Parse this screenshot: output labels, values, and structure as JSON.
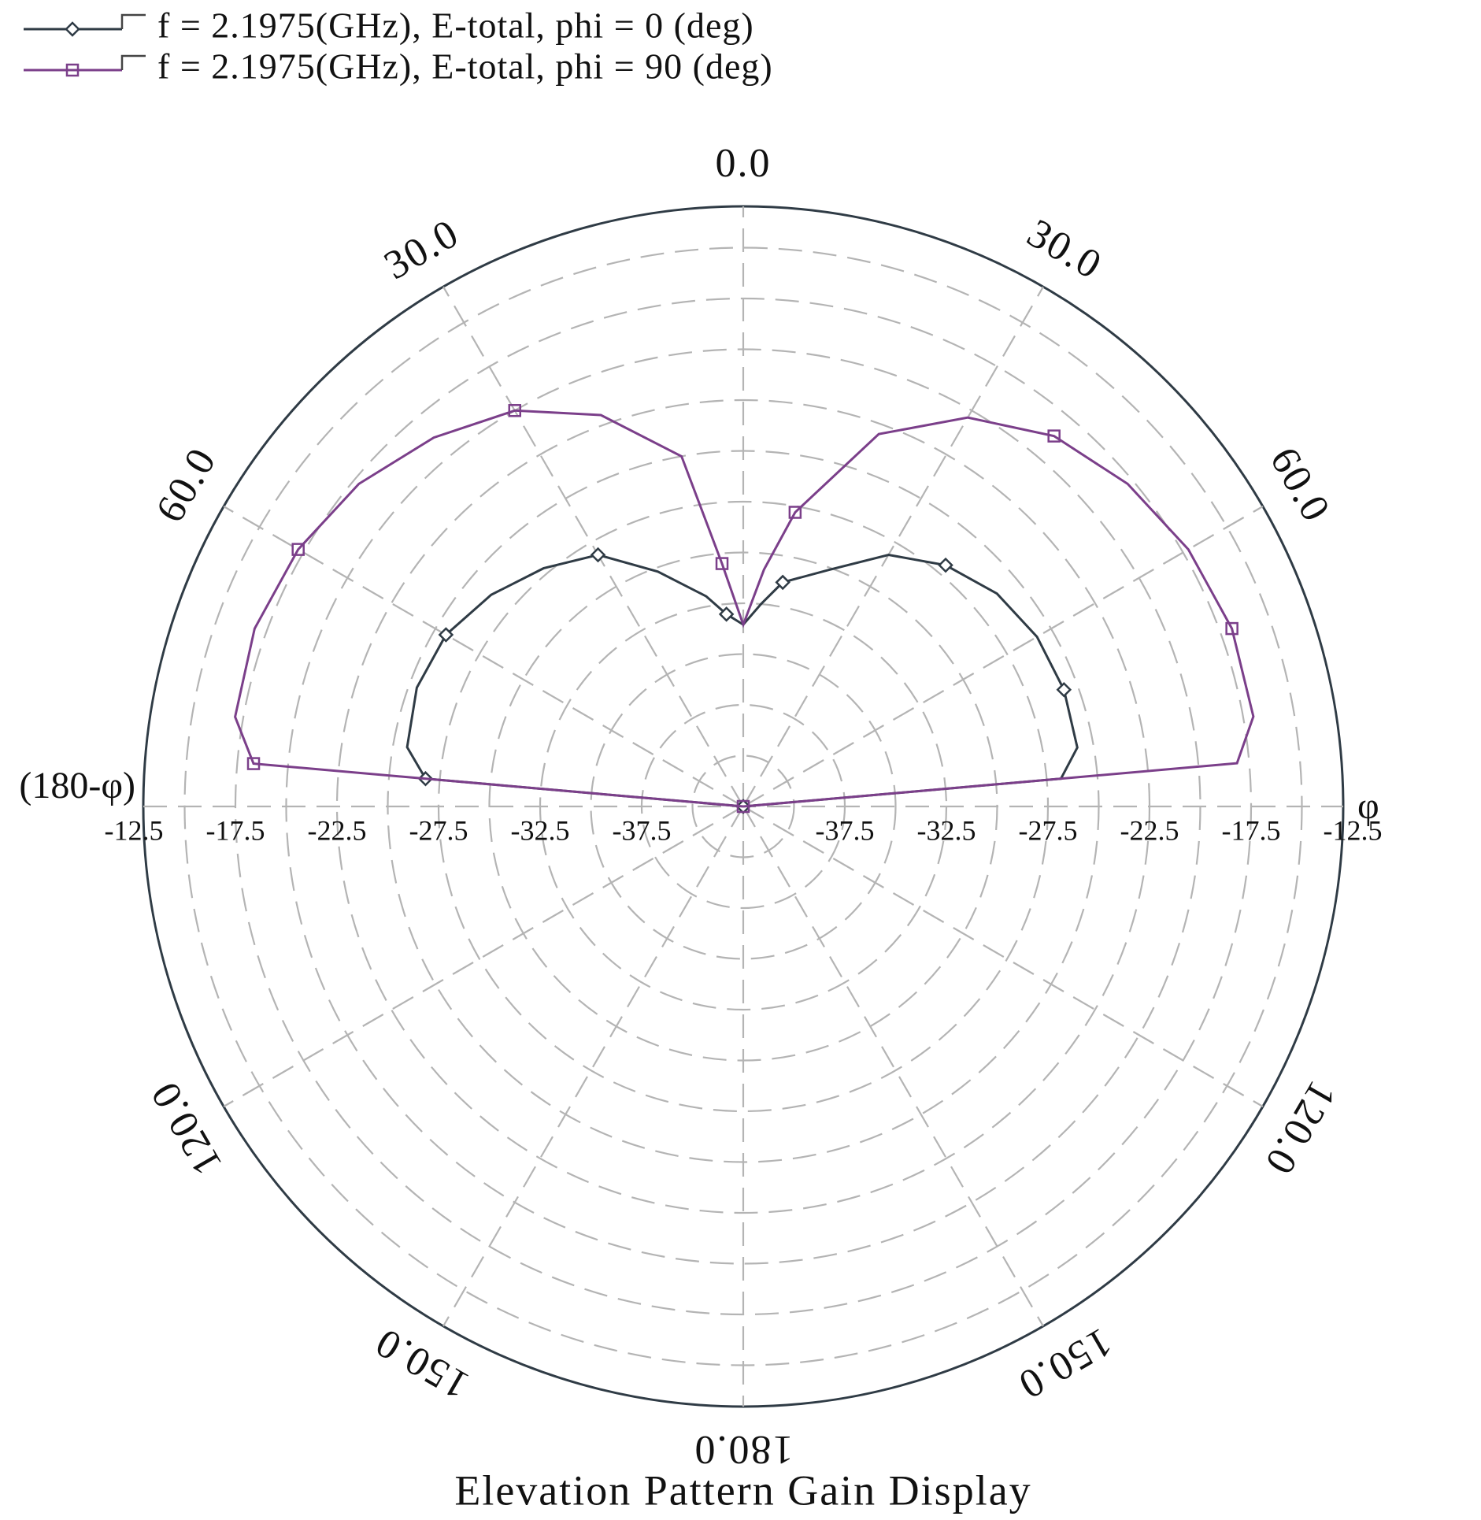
{
  "chart_data": {
    "type": "polar",
    "title": "Elevation Pattern Gain Display",
    "theta": [
      -90,
      -85,
      -80,
      -70,
      -60,
      -50,
      -40,
      -30,
      -20,
      -10,
      -5,
      0,
      5,
      10,
      20,
      30,
      40,
      50,
      60,
      70,
      80,
      85,
      90
    ],
    "series": [
      {
        "name": "f = 2.1975(GHz), E-total, phi = 0 (deg)",
        "color": "#2f3b45",
        "marker": "diamond",
        "values": [
          -42.5,
          -26.8,
          -25.7,
          -25.4,
          -25.6,
          -26.3,
          -27.2,
          -28.2,
          -30.2,
          -32.0,
          -33.0,
          -33.55,
          -32.5,
          -31.3,
          -30.1,
          -28.2,
          -27.0,
          -26.2,
          -25.8,
          -25.7,
          -25.8,
          -26.8,
          -42.5
        ]
      },
      {
        "name": "f = 2.1975(GHz), E-total, phi = 90 (deg)",
        "color": "#7b3f8a",
        "marker": "square",
        "values": [
          -42.5,
          -18.3,
          -17.1,
          -16.9,
          -17.2,
          -17.8,
          -18.8,
          -20.0,
          -22.0,
          -25.0,
          -30.5,
          -33.55,
          -30.8,
          -27.8,
          -23.0,
          -20.4,
          -18.7,
          -17.8,
          -17.2,
          -16.9,
          -17.0,
          -18.1,
          -42.5
        ]
      }
    ],
    "rlim": [
      -42.5,
      -12.5
    ],
    "rticks": [
      -37.5,
      -32.5,
      -27.5,
      -22.5,
      -17.5,
      -12.5
    ],
    "rgrid": [
      -40,
      -37.5,
      -35,
      -32.5,
      -30,
      -27.5,
      -25,
      -22.5,
      -20,
      -17.5,
      -15
    ],
    "thetaticks": [
      {
        "value": 0,
        "label": "0.0"
      },
      {
        "value": 30,
        "label": "30.0"
      },
      {
        "value": 60,
        "label": "60.0"
      },
      {
        "value": 120,
        "label": "120.0"
      },
      {
        "value": 150,
        "label": "150.0"
      },
      {
        "value": 180,
        "label": "180.0"
      },
      {
        "value": -30,
        "label": "30.0"
      },
      {
        "value": -60,
        "label": "60.0"
      },
      {
        "value": -120,
        "label": "120.0"
      },
      {
        "value": -150,
        "label": "150.0"
      }
    ],
    "right_label": "φ",
    "left_label": "(180-φ)",
    "grid": true
  }
}
